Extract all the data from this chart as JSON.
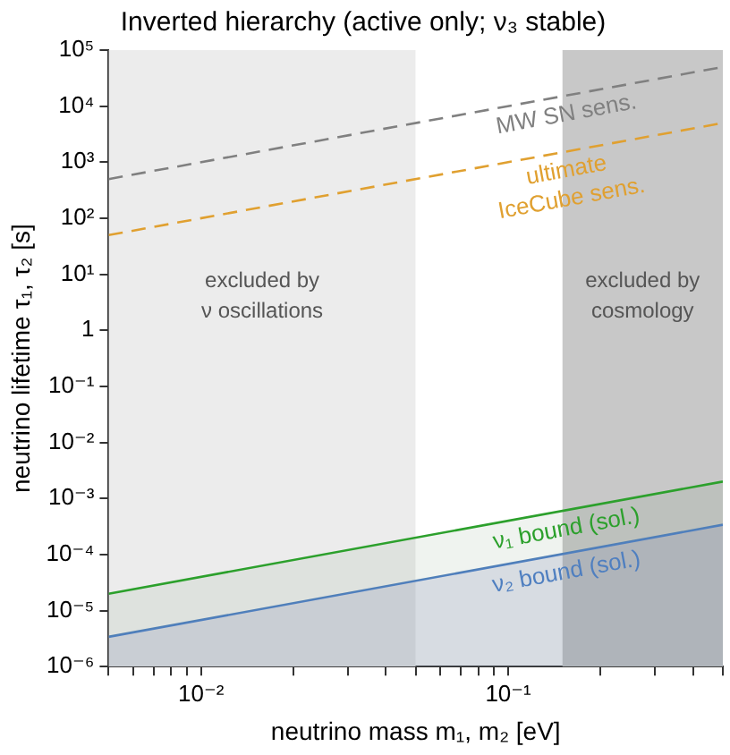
{
  "chart_data": {
    "type": "line",
    "title": "Inverted hierarchy (active only; ν₃ stable)",
    "xlabel": "neutrino mass m₁, m₂ [eV]",
    "ylabel": "neutrino lifetime τ₁, τ₂ [s]",
    "log": "xy",
    "grid": false,
    "legend": false,
    "marker": "none",
    "x": [
      0.005,
      0.5
    ],
    "xlim": [
      0.005,
      0.5
    ],
    "xticks": [
      {
        "value": 0.005,
        "label": null
      },
      {
        "value": 0.006,
        "label": null
      },
      {
        "value": 0.007,
        "label": null
      },
      {
        "value": 0.008,
        "label": null
      },
      {
        "value": 0.009,
        "label": null
      },
      {
        "value": 0.01,
        "label": "10⁻²"
      },
      {
        "value": 0.02,
        "label": null
      },
      {
        "value": 0.03,
        "label": null
      },
      {
        "value": 0.04,
        "label": null
      },
      {
        "value": 0.05,
        "label": null
      },
      {
        "value": 0.06,
        "label": null
      },
      {
        "value": 0.07,
        "label": null
      },
      {
        "value": 0.08,
        "label": null
      },
      {
        "value": 0.09,
        "label": null
      },
      {
        "value": 0.1,
        "label": "10⁻¹"
      },
      {
        "value": 0.2,
        "label": null
      },
      {
        "value": 0.3,
        "label": null
      },
      {
        "value": 0.4,
        "label": null
      },
      {
        "value": 0.5,
        "label": null
      }
    ],
    "ylim": [
      1e-06,
      100000.0
    ],
    "yticks": [
      {
        "value": 1e-06,
        "label": "10⁻⁶"
      },
      {
        "value": 1e-05,
        "label": "10⁻⁵"
      },
      {
        "value": 0.0001,
        "label": "10⁻⁴"
      },
      {
        "value": 0.001,
        "label": "10⁻³"
      },
      {
        "value": 0.01,
        "label": "10⁻²"
      },
      {
        "value": 0.1,
        "label": "10⁻¹"
      },
      1,
      {
        "value": 10,
        "label": "10¹"
      },
      {
        "value": 100,
        "label": "10²"
      },
      {
        "value": 1000,
        "label": "10³"
      },
      {
        "value": 10000,
        "label": "10⁴"
      },
      {
        "value": 100000,
        "label": "10⁵"
      }
    ],
    "bands": [
      {
        "axis": "x",
        "from": 0.005,
        "to": 0.05,
        "label": "excluded by\nν oscillations",
        "color": "#ececec"
      },
      {
        "axis": "x",
        "from": 0.15,
        "to": 0.5,
        "label": "excluded by\ncosmology",
        "color": "#c8c8c8"
      }
    ],
    "series": [
      {
        "name": "MW SN sens.",
        "color": "#808080",
        "line_style": "dashed",
        "values": [
          500,
          50000
        ]
      },
      {
        "name": "ultimate\nIceCube sens.",
        "color": "#e0a030",
        "line_style": "dashed",
        "values": [
          50,
          5000
        ]
      },
      {
        "name": "ν₁ bound (sol.)",
        "type": "area",
        "color": "#2ca02c",
        "values": [
          2e-05,
          0.002
        ]
      },
      {
        "name": "ν₂ bound (sol.)",
        "type": "area",
        "color": "#4f7fc0",
        "values": [
          3.4e-06,
          0.00034
        ]
      }
    ]
  }
}
